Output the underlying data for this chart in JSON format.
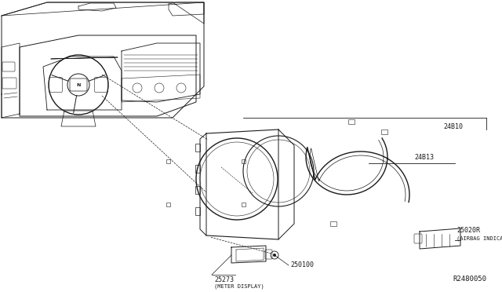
{
  "bg_color": "#ffffff",
  "line_color": "#1a1a1a",
  "fig_width": 6.4,
  "fig_height": 3.72,
  "dpi": 100,
  "ref_number": "R2480050",
  "label_24B10": "24B10",
  "label_24B13": "24B13",
  "label_25020R": "25020R",
  "label_25020R_sub": "(AIRBAG INDICATOR)",
  "label_250100": "250100",
  "label_25273": "25273",
  "label_25273_sub": "(METER DISPLAY)"
}
